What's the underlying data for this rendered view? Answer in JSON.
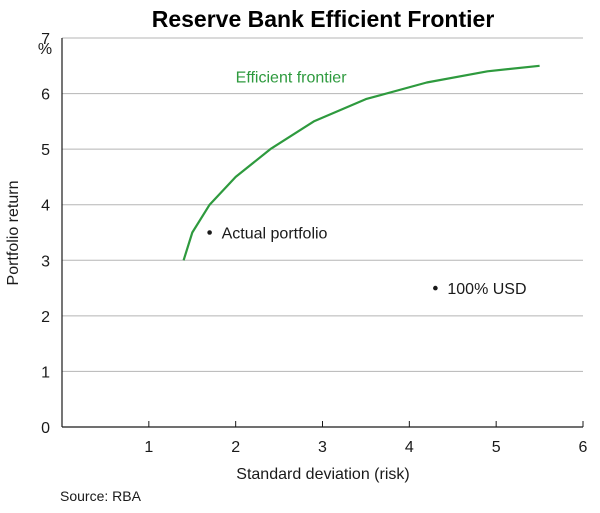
{
  "chart_data": {
    "type": "line",
    "title": "Reserve Bank Efficient Frontier",
    "xlabel": "Standard deviation (risk)",
    "ylabel": "Portfolio return",
    "y_unit": "%",
    "xlim": [
      0,
      6
    ],
    "ylim": [
      0,
      7
    ],
    "x_ticks": [
      1,
      2,
      3,
      4,
      5,
      6
    ],
    "y_ticks": [
      0,
      1,
      2,
      3,
      4,
      5,
      6,
      7
    ],
    "grid": "horizontal",
    "series": [
      {
        "name": "Efficient frontier",
        "color": "#2e9a3e",
        "x": [
          1.4,
          1.5,
          1.7,
          2.0,
          2.4,
          2.9,
          3.5,
          4.2,
          4.9,
          5.5
        ],
        "y": [
          3.0,
          3.5,
          4.0,
          4.5,
          5.0,
          5.5,
          5.9,
          6.2,
          6.4,
          6.5
        ]
      }
    ],
    "points": [
      {
        "label": "Actual portfolio",
        "x": 1.7,
        "y": 3.5
      },
      {
        "label": "100% USD",
        "x": 4.3,
        "y": 2.5
      }
    ],
    "source": "Source: RBA"
  }
}
